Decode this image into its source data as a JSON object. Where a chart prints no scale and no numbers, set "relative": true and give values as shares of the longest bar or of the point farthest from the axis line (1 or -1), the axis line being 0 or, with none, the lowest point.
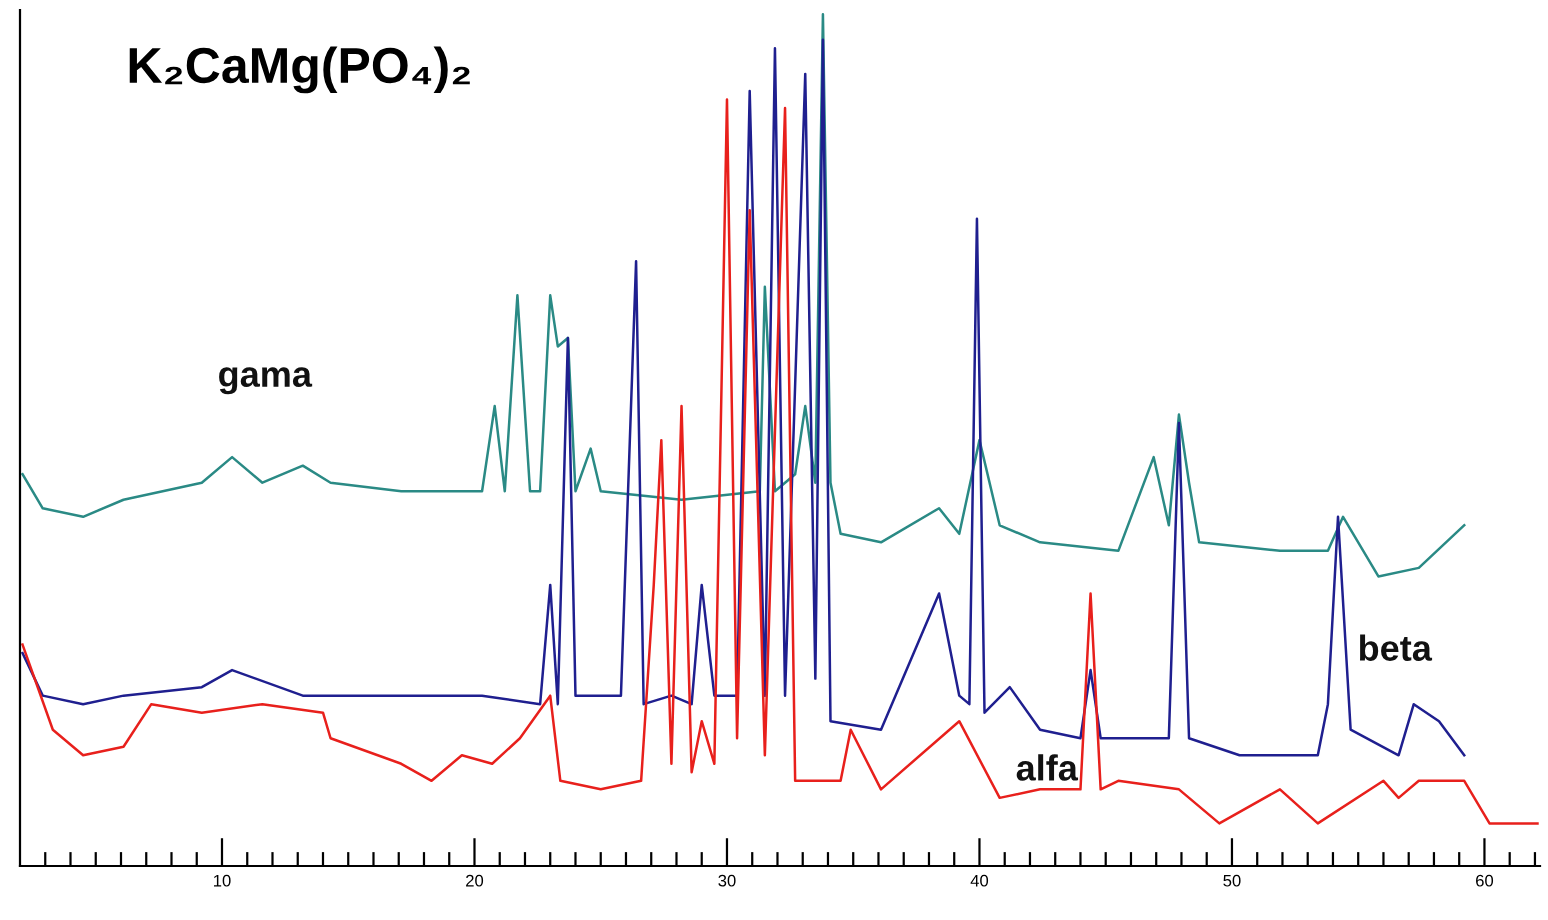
{
  "chart_data": {
    "type": "line",
    "title": "K₂CaMg(PO₄)₂",
    "relative": true,
    "grid": false,
    "legend": false,
    "xlim": [
      2.0,
      62.2
    ],
    "xticks": [
      {
        "value": 3,
        "label": null
      },
      {
        "value": 4,
        "label": null
      },
      {
        "value": 5,
        "label": null
      },
      {
        "value": 6,
        "label": null
      },
      {
        "value": 7,
        "label": null
      },
      {
        "value": 8,
        "label": null
      },
      {
        "value": 9,
        "label": null
      },
      10,
      {
        "value": 11,
        "label": null
      },
      {
        "value": 12,
        "label": null
      },
      {
        "value": 13,
        "label": null
      },
      {
        "value": 14,
        "label": null
      },
      {
        "value": 15,
        "label": null
      },
      {
        "value": 16,
        "label": null
      },
      {
        "value": 17,
        "label": null
      },
      {
        "value": 18,
        "label": null
      },
      {
        "value": 19,
        "label": null
      },
      20,
      {
        "value": 21,
        "label": null
      },
      {
        "value": 22,
        "label": null
      },
      {
        "value": 23,
        "label": null
      },
      {
        "value": 24,
        "label": null
      },
      {
        "value": 25,
        "label": null
      },
      {
        "value": 26,
        "label": null
      },
      {
        "value": 27,
        "label": null
      },
      {
        "value": 28,
        "label": null
      },
      {
        "value": 29,
        "label": null
      },
      30,
      {
        "value": 31,
        "label": null
      },
      {
        "value": 32,
        "label": null
      },
      {
        "value": 33,
        "label": null
      },
      {
        "value": 34,
        "label": null
      },
      {
        "value": 35,
        "label": null
      },
      {
        "value": 36,
        "label": null
      },
      {
        "value": 37,
        "label": null
      },
      {
        "value": 38,
        "label": null
      },
      {
        "value": 39,
        "label": null
      },
      40,
      {
        "value": 41,
        "label": null
      },
      {
        "value": 42,
        "label": null
      },
      {
        "value": 43,
        "label": null
      },
      {
        "value": 44,
        "label": null
      },
      {
        "value": 45,
        "label": null
      },
      {
        "value": 46,
        "label": null
      },
      {
        "value": 47,
        "label": null
      },
      {
        "value": 48,
        "label": null
      },
      {
        "value": 49,
        "label": null
      },
      50,
      {
        "value": 51,
        "label": null
      },
      {
        "value": 52,
        "label": null
      },
      {
        "value": 53,
        "label": null
      },
      {
        "value": 54,
        "label": null
      },
      {
        "value": 55,
        "label": null
      },
      {
        "value": 56,
        "label": null
      },
      {
        "value": 57,
        "label": null
      },
      {
        "value": 58,
        "label": null
      },
      {
        "value": 59,
        "label": null
      },
      60,
      {
        "value": 61,
        "label": null
      },
      {
        "value": 62,
        "label": null
      }
    ],
    "series": [
      {
        "name": "gama",
        "color": "#2a8a85",
        "x": [
          2.1,
          2.9,
          4.5,
          6.1,
          9.2,
          10.4,
          11.6,
          13.2,
          14.3,
          17.1,
          20.3,
          20.8,
          21.2,
          21.7,
          22.2,
          22.6,
          23.0,
          23.3,
          23.7,
          24.0,
          24.6,
          25.0,
          28.2,
          31.3,
          31.5,
          31.9,
          32.7,
          33.1,
          33.5,
          33.8,
          34.1,
          34.5,
          36.1,
          38.4,
          39.2,
          40.0,
          40.8,
          42.4,
          45.5,
          46.9,
          47.5,
          47.9,
          48.3,
          48.7,
          51.9,
          53.8,
          54.4,
          55.8,
          57.4,
          59.2
        ],
        "values": [
          0.46,
          0.42,
          0.41,
          0.43,
          0.45,
          0.48,
          0.45,
          0.47,
          0.45,
          0.44,
          0.44,
          0.54,
          0.44,
          0.67,
          0.44,
          0.44,
          0.67,
          0.61,
          0.62,
          0.44,
          0.49,
          0.44,
          0.43,
          0.44,
          0.68,
          0.44,
          0.46,
          0.54,
          0.45,
          1.0,
          0.45,
          0.39,
          0.38,
          0.42,
          0.39,
          0.5,
          0.4,
          0.38,
          0.37,
          0.48,
          0.4,
          0.53,
          0.45,
          0.38,
          0.37,
          0.37,
          0.41,
          0.34,
          0.35,
          0.4
        ]
      },
      {
        "name": "beta",
        "color": "#1f1f8f",
        "x": [
          2.1,
          2.9,
          4.5,
          6.1,
          9.2,
          10.4,
          13.2,
          17.1,
          20.3,
          22.6,
          23.0,
          23.3,
          23.7,
          24.0,
          25.0,
          25.8,
          26.4,
          26.7,
          27.8,
          28.6,
          29.0,
          29.5,
          30.4,
          30.9,
          31.5,
          31.9,
          32.3,
          33.1,
          33.5,
          33.8,
          34.1,
          36.1,
          38.4,
          39.2,
          39.6,
          39.9,
          40.2,
          41.2,
          42.4,
          44.0,
          44.4,
          44.8,
          47.5,
          47.9,
          48.3,
          50.3,
          53.4,
          53.8,
          54.2,
          54.7,
          56.6,
          57.2,
          58.2,
          59.2
        ],
        "values": [
          0.25,
          0.2,
          0.19,
          0.2,
          0.21,
          0.23,
          0.2,
          0.2,
          0.2,
          0.19,
          0.33,
          0.19,
          0.62,
          0.2,
          0.2,
          0.2,
          0.71,
          0.19,
          0.2,
          0.19,
          0.33,
          0.2,
          0.2,
          0.91,
          0.2,
          0.96,
          0.2,
          0.93,
          0.22,
          0.97,
          0.17,
          0.16,
          0.32,
          0.2,
          0.19,
          0.76,
          0.18,
          0.21,
          0.16,
          0.15,
          0.23,
          0.15,
          0.15,
          0.52,
          0.15,
          0.13,
          0.13,
          0.19,
          0.41,
          0.16,
          0.13,
          0.19,
          0.17,
          0.13
        ]
      },
      {
        "name": "alfa",
        "color": "#e8201c",
        "x": [
          2.1,
          3.3,
          4.5,
          6.1,
          7.2,
          9.2,
          11.6,
          14.0,
          14.3,
          17.1,
          18.3,
          19.5,
          20.7,
          21.8,
          23.0,
          23.4,
          25.0,
          26.6,
          27.1,
          27.4,
          27.8,
          28.2,
          28.6,
          29.0,
          29.5,
          30.0,
          30.4,
          30.9,
          31.5,
          32.3,
          32.7,
          34.5,
          34.9,
          36.1,
          39.2,
          40.8,
          42.4,
          44.0,
          44.4,
          44.8,
          45.5,
          47.9,
          49.5,
          51.9,
          53.4,
          56.0,
          56.6,
          57.4,
          59.2,
          60.2,
          62.1
        ],
        "values": [
          0.26,
          0.16,
          0.13,
          0.14,
          0.19,
          0.18,
          0.19,
          0.18,
          0.15,
          0.12,
          0.1,
          0.13,
          0.12,
          0.15,
          0.2,
          0.1,
          0.09,
          0.1,
          0.33,
          0.5,
          0.12,
          0.54,
          0.11,
          0.17,
          0.12,
          0.9,
          0.15,
          0.77,
          0.13,
          0.89,
          0.1,
          0.1,
          0.16,
          0.09,
          0.17,
          0.08,
          0.09,
          0.09,
          0.32,
          0.09,
          0.1,
          0.09,
          0.05,
          0.09,
          0.05,
          0.1,
          0.08,
          0.1,
          0.1,
          0.05,
          0.05
        ]
      }
    ]
  }
}
